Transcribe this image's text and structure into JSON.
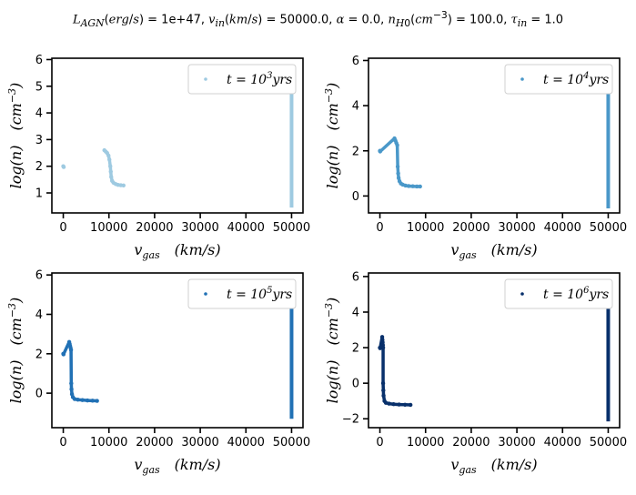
{
  "figure": {
    "suptitle": "L_AGN(erg/s) = 1e+47, v_in(km/s) = 50000.0, α = 0.0, n_H0(cm^-3) = 100.0, τ_in = 1.0"
  },
  "chart_data": [
    {
      "type": "scatter",
      "xlabel": "v_gas   (km/s)",
      "ylabel": "log(n)   (cm^-3)",
      "xlim": [
        -2500,
        52500
      ],
      "ylim": [
        0.25,
        6.05
      ],
      "xticks": [
        0,
        10000,
        20000,
        30000,
        40000,
        50000
      ],
      "yticks": [
        1,
        2,
        3,
        4,
        5,
        6
      ],
      "legend": "top-right",
      "series": [
        {
          "name": "t = 10^3 yrs",
          "color": "#9ecae1",
          "points": [
            [
              0,
              2.0
            ],
            [
              100,
              1.97
            ],
            [
              9000,
              2.6
            ],
            [
              9300,
              2.55
            ],
            [
              9600,
              2.5
            ],
            [
              9900,
              2.4
            ],
            [
              10100,
              2.25
            ],
            [
              10300,
              2.0
            ],
            [
              10400,
              1.8
            ],
            [
              10500,
              1.6
            ],
            [
              10700,
              1.45
            ],
            [
              11000,
              1.38
            ],
            [
              11500,
              1.33
            ],
            [
              12000,
              1.3
            ],
            [
              12600,
              1.29
            ],
            [
              13200,
              1.28
            ]
          ],
          "vertical_band": {
            "x": 50000,
            "y_min": 0.45,
            "y_max": 5.8
          }
        }
      ]
    },
    {
      "type": "scatter",
      "xlabel": "v_gas   (km/s)",
      "ylabel": "log(n)   (cm^-3)",
      "xlim": [
        -2500,
        52500
      ],
      "ylim": [
        -0.75,
        6.1
      ],
      "xticks": [
        0,
        10000,
        20000,
        30000,
        40000,
        50000
      ],
      "yticks": [
        0,
        2,
        4,
        6
      ],
      "legend": "top-right",
      "series": [
        {
          "name": "t = 10^4 yrs",
          "color": "#4a98c9",
          "points": [
            [
              0,
              2.0
            ],
            [
              50,
              1.97
            ],
            [
              3200,
              2.55
            ],
            [
              3400,
              2.45
            ],
            [
              3600,
              2.35
            ],
            [
              3800,
              2.25
            ],
            [
              3900,
              1.3
            ],
            [
              4000,
              1.0
            ],
            [
              4100,
              0.8
            ],
            [
              4300,
              0.65
            ],
            [
              4600,
              0.55
            ],
            [
              5000,
              0.5
            ],
            [
              5600,
              0.46
            ],
            [
              6300,
              0.44
            ],
            [
              7200,
              0.43
            ],
            [
              8100,
              0.42
            ],
            [
              8800,
              0.42
            ]
          ],
          "vertical_band": {
            "x": 50000,
            "y_min": -0.55,
            "y_max": 5.75
          }
        }
      ]
    },
    {
      "type": "scatter",
      "xlabel": "v_gas   (km/s)",
      "ylabel": "log(n)   (cm^-3)",
      "xlim": [
        -2500,
        52500
      ],
      "ylim": [
        -1.75,
        6.1
      ],
      "xticks": [
        0,
        10000,
        20000,
        30000,
        40000,
        50000
      ],
      "yticks": [
        0,
        2,
        4,
        6
      ],
      "legend": "top-right",
      "series": [
        {
          "name": "t = 10^5 yrs",
          "color": "#2171b5",
          "points": [
            [
              0,
              2.0
            ],
            [
              50,
              1.97
            ],
            [
              1300,
              2.6
            ],
            [
              1400,
              2.5
            ],
            [
              1500,
              2.4
            ],
            [
              1600,
              2.3
            ],
            [
              1700,
              2.2
            ],
            [
              1750,
              0.5
            ],
            [
              1800,
              0.2
            ],
            [
              1900,
              -0.05
            ],
            [
              2100,
              -0.2
            ],
            [
              2500,
              -0.3
            ],
            [
              3200,
              -0.33
            ],
            [
              4200,
              -0.35
            ],
            [
              5300,
              -0.37
            ],
            [
              6400,
              -0.38
            ],
            [
              7400,
              -0.39
            ]
          ],
          "vertical_band": {
            "x": 50000,
            "y_min": -1.3,
            "y_max": 5.8
          }
        }
      ]
    },
    {
      "type": "scatter",
      "xlabel": "v_gas   (km/s)",
      "ylabel": "log(n)   (cm^-3)",
      "xlim": [
        -2500,
        52500
      ],
      "ylim": [
        -2.5,
        6.2
      ],
      "xticks": [
        0,
        10000,
        20000,
        30000,
        40000,
        50000
      ],
      "yticks": [
        -2,
        0,
        2,
        4,
        6
      ],
      "legend": "top-right",
      "series": [
        {
          "name": "t = 10^6 yrs",
          "color": "#08306b",
          "points": [
            [
              0,
              2.0
            ],
            [
              50,
              1.97
            ],
            [
              500,
              2.6
            ],
            [
              550,
              2.45
            ],
            [
              600,
              2.3
            ],
            [
              650,
              2.15
            ],
            [
              700,
              2.0
            ],
            [
              700,
              0.0
            ],
            [
              750,
              -0.4
            ],
            [
              800,
              -0.7
            ],
            [
              1000,
              -1.0
            ],
            [
              1300,
              -1.1
            ],
            [
              2000,
              -1.15
            ],
            [
              3000,
              -1.18
            ],
            [
              4200,
              -1.2
            ],
            [
              5500,
              -1.21
            ],
            [
              6700,
              -1.22
            ]
          ],
          "vertical_band": {
            "x": 50000,
            "y_min": -2.15,
            "y_max": 5.8
          }
        }
      ]
    }
  ]
}
